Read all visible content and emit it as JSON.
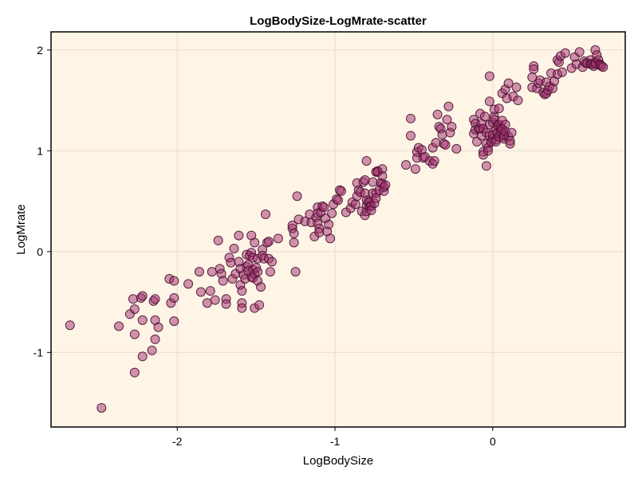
{
  "chart_data": {
    "type": "scatter",
    "title": "LogBodySize-LogMrate-scatter",
    "xlabel": "LogBodySize",
    "ylabel": "LogMrate",
    "xlim": [
      -2.8,
      0.84
    ],
    "ylim": [
      -1.74,
      2.18
    ],
    "x_ticks": [
      -2,
      -1,
      0
    ],
    "y_ticks": [
      -1,
      0,
      1,
      2
    ],
    "x_tick_labels": [
      "-2",
      "-1",
      "0"
    ],
    "y_tick_labels": [
      "-1",
      "0",
      "1",
      "2"
    ],
    "grid": true,
    "legend": "none",
    "colors": {
      "background": "#fff5e6",
      "point_fill": "#a0306e",
      "point_stroke": "#4a0f30",
      "grid": "#e6dcd0",
      "frame": "#000000"
    },
    "points": [
      [
        -2.68,
        -0.73
      ],
      [
        -2.48,
        -1.55
      ],
      [
        -2.37,
        -0.74
      ],
      [
        -2.3,
        -0.62
      ],
      [
        -2.28,
        -0.47
      ],
      [
        -2.27,
        -0.57
      ],
      [
        -2.27,
        -0.82
      ],
      [
        -2.27,
        -1.2
      ],
      [
        -2.23,
        -0.46
      ],
      [
        -2.22,
        -0.44
      ],
      [
        -2.22,
        -0.68
      ],
      [
        -2.22,
        -1.04
      ],
      [
        -2.16,
        -0.98
      ],
      [
        -2.15,
        -0.49
      ],
      [
        -2.14,
        -0.47
      ],
      [
        -2.14,
        -0.68
      ],
      [
        -2.14,
        -0.87
      ],
      [
        -2.12,
        -0.75
      ],
      [
        -2.05,
        -0.27
      ],
      [
        -2.04,
        -0.51
      ],
      [
        -2.02,
        -0.29
      ],
      [
        -2.02,
        -0.46
      ],
      [
        -2.02,
        -0.69
      ],
      [
        -1.93,
        -0.32
      ],
      [
        -1.86,
        -0.2
      ],
      [
        -1.85,
        -0.4
      ],
      [
        -1.81,
        -0.51
      ],
      [
        -1.79,
        -0.39
      ],
      [
        -1.78,
        -0.2
      ],
      [
        -1.76,
        -0.48
      ],
      [
        -1.74,
        0.11
      ],
      [
        -1.73,
        -0.17
      ],
      [
        -1.72,
        -0.22
      ],
      [
        -1.71,
        -0.29
      ],
      [
        -1.69,
        -0.47
      ],
      [
        -1.69,
        -0.52
      ],
      [
        -1.67,
        -0.06
      ],
      [
        -1.66,
        -0.11
      ],
      [
        -1.65,
        -0.27
      ],
      [
        -1.64,
        0.03
      ],
      [
        -1.63,
        -0.22
      ],
      [
        -1.61,
        0.16
      ],
      [
        -1.61,
        -0.1
      ],
      [
        -1.6,
        -0.17
      ],
      [
        -1.6,
        -0.33
      ],
      [
        -1.59,
        -0.39
      ],
      [
        -1.59,
        -0.51
      ],
      [
        -1.59,
        -0.56
      ],
      [
        -1.58,
        -0.23
      ],
      [
        -1.57,
        -0.27
      ],
      [
        -1.56,
        -0.03
      ],
      [
        -1.56,
        -0.15
      ],
      [
        -1.55,
        -0.13
      ],
      [
        -1.55,
        -0.19
      ],
      [
        -1.54,
        -0.04
      ],
      [
        -1.53,
        0.16
      ],
      [
        -1.53,
        -0.01
      ],
      [
        -1.53,
        -0.25
      ],
      [
        -1.52,
        -0.06
      ],
      [
        -1.52,
        -0.18
      ],
      [
        -1.52,
        -0.26
      ],
      [
        -1.51,
        0.09
      ],
      [
        -1.51,
        -0.22
      ],
      [
        -1.51,
        -0.56
      ],
      [
        -1.5,
        -0.16
      ],
      [
        -1.49,
        -0.07
      ],
      [
        -1.49,
        -0.2
      ],
      [
        -1.49,
        -0.29
      ],
      [
        -1.48,
        -0.53
      ],
      [
        -1.47,
        -0.35
      ],
      [
        -1.46,
        0.02
      ],
      [
        -1.46,
        -0.04
      ],
      [
        -1.45,
        -0.07
      ],
      [
        -1.44,
        0.37
      ],
      [
        -1.43,
        0.09
      ],
      [
        -1.42,
        0.1
      ],
      [
        -1.42,
        -0.07
      ],
      [
        -1.41,
        -0.2
      ],
      [
        -1.4,
        -0.1
      ],
      [
        -1.36,
        0.13
      ],
      [
        -1.27,
        0.23
      ],
      [
        -1.27,
        0.26
      ],
      [
        -1.26,
        0.18
      ],
      [
        -1.26,
        0.09
      ],
      [
        -1.25,
        -0.2
      ],
      [
        -1.24,
        0.55
      ],
      [
        -1.23,
        0.32
      ],
      [
        -1.19,
        0.3
      ],
      [
        -1.16,
        0.37
      ],
      [
        -1.15,
        0.29
      ],
      [
        -1.13,
        0.15
      ],
      [
        -1.12,
        0.34
      ],
      [
        -1.11,
        0.44
      ],
      [
        -1.11,
        0.38
      ],
      [
        -1.11,
        0.28
      ],
      [
        -1.1,
        0.23
      ],
      [
        -1.1,
        0.19
      ],
      [
        -1.09,
        0.39
      ],
      [
        -1.08,
        0.45
      ],
      [
        -1.07,
        0.44
      ],
      [
        -1.06,
        0.33
      ],
      [
        -1.05,
        0.2
      ],
      [
        -1.04,
        0.27
      ],
      [
        -1.03,
        0.13
      ],
      [
        -1.02,
        0.38
      ],
      [
        -1.01,
        0.47
      ],
      [
        -0.99,
        0.52
      ],
      [
        -0.98,
        0.51
      ],
      [
        -0.97,
        0.61
      ],
      [
        -0.96,
        0.6
      ],
      [
        -0.93,
        0.39
      ],
      [
        -0.9,
        0.43
      ],
      [
        -0.89,
        0.49
      ],
      [
        -0.87,
        0.47
      ],
      [
        -0.86,
        0.68
      ],
      [
        -0.86,
        0.55
      ],
      [
        -0.85,
        0.61
      ],
      [
        -0.84,
        0.59
      ],
      [
        -0.83,
        0.4
      ],
      [
        -0.82,
        0.69
      ],
      [
        -0.81,
        0.58
      ],
      [
        -0.81,
        0.71
      ],
      [
        -0.81,
        0.36
      ],
      [
        -0.8,
        0.4
      ],
      [
        -0.8,
        0.9
      ],
      [
        -0.8,
        0.46
      ],
      [
        -0.8,
        0.51
      ],
      [
        -0.79,
        0.49
      ],
      [
        -0.78,
        0.49
      ],
      [
        -0.78,
        0.45
      ],
      [
        -0.77,
        0.45
      ],
      [
        -0.77,
        0.41
      ],
      [
        -0.76,
        0.69
      ],
      [
        -0.76,
        0.58
      ],
      [
        -0.75,
        0.48
      ],
      [
        -0.74,
        0.79
      ],
      [
        -0.74,
        0.58
      ],
      [
        -0.74,
        0.53
      ],
      [
        -0.73,
        0.8
      ],
      [
        -0.73,
        0.79
      ],
      [
        -0.72,
        0.61
      ],
      [
        -0.71,
        0.68
      ],
      [
        -0.7,
        0.82
      ],
      [
        -0.7,
        0.75
      ],
      [
        -0.7,
        0.67
      ],
      [
        -0.69,
        0.6
      ],
      [
        -0.69,
        0.64
      ],
      [
        -0.68,
        0.66
      ],
      [
        -0.55,
        0.86
      ],
      [
        -0.52,
        1.32
      ],
      [
        -0.52,
        1.15
      ],
      [
        -0.49,
        0.82
      ],
      [
        -0.48,
        0.93
      ],
      [
        -0.48,
        0.99
      ],
      [
        -0.47,
        1.03
      ],
      [
        -0.45,
        1.01
      ],
      [
        -0.44,
        0.93
      ],
      [
        -0.43,
        0.94
      ],
      [
        -0.4,
        0.9
      ],
      [
        -0.38,
        0.87
      ],
      [
        -0.38,
        1.03
      ],
      [
        -0.37,
        0.9
      ],
      [
        -0.36,
        1.08
      ],
      [
        -0.35,
        1.36
      ],
      [
        -0.34,
        1.24
      ],
      [
        -0.33,
        1.22
      ],
      [
        -0.32,
        1.16
      ],
      [
        -0.31,
        1.07
      ],
      [
        -0.3,
        1.06
      ],
      [
        -0.29,
        1.31
      ],
      [
        -0.28,
        1.44
      ],
      [
        -0.27,
        1.18
      ],
      [
        -0.26,
        1.24
      ],
      [
        -0.23,
        1.02
      ],
      [
        -0.12,
        1.17
      ],
      [
        -0.12,
        1.31
      ],
      [
        -0.11,
        1.27
      ],
      [
        -0.11,
        1.21
      ],
      [
        -0.1,
        1.09
      ],
      [
        -0.09,
        1.22
      ],
      [
        -0.08,
        1.37
      ],
      [
        -0.08,
        1.22
      ],
      [
        -0.07,
        1.27
      ],
      [
        -0.07,
        1.15
      ],
      [
        -0.06,
        1.22
      ],
      [
        -0.06,
        0.99
      ],
      [
        -0.06,
        0.96
      ],
      [
        -0.05,
        1.34
      ],
      [
        -0.04,
        0.85
      ],
      [
        -0.04,
        1.18
      ],
      [
        -0.04,
        1.07
      ],
      [
        -0.03,
        1.03
      ],
      [
        -0.03,
        1.0
      ],
      [
        -0.02,
        1.15
      ],
      [
        -0.02,
        1.49
      ],
      [
        -0.02,
        1.74
      ],
      [
        -0.02,
        1.26
      ],
      [
        -0.01,
        1.09
      ],
      [
        -0.01,
        1.09
      ],
      [
        0.0,
        1.12
      ],
      [
        0.0,
        1.16
      ],
      [
        0.0,
        1.28
      ],
      [
        0.01,
        1.34
      ],
      [
        0.01,
        1.41
      ],
      [
        0.01,
        1.31
      ],
      [
        0.02,
        1.21
      ],
      [
        0.02,
        1.11
      ],
      [
        0.02,
        1.09
      ],
      [
        0.03,
        1.18
      ],
      [
        0.03,
        1.25
      ],
      [
        0.04,
        1.42
      ],
      [
        0.04,
        1.26
      ],
      [
        0.04,
        1.14
      ],
      [
        0.05,
        1.19
      ],
      [
        0.05,
        1.23
      ],
      [
        0.06,
        1.57
      ],
      [
        0.06,
        1.3
      ],
      [
        0.06,
        1.22
      ],
      [
        0.06,
        1.21
      ],
      [
        0.07,
        1.14
      ],
      [
        0.07,
        1.12
      ],
      [
        0.07,
        1.16
      ],
      [
        0.08,
        1.61
      ],
      [
        0.08,
        1.26
      ],
      [
        0.08,
        1.19
      ],
      [
        0.09,
        1.52
      ],
      [
        0.1,
        1.67
      ],
      [
        0.1,
        1.14
      ],
      [
        0.11,
        1.07
      ],
      [
        0.11,
        1.1
      ],
      [
        0.12,
        1.18
      ],
      [
        0.13,
        1.54
      ],
      [
        0.15,
        1.63
      ],
      [
        0.16,
        1.5
      ],
      [
        0.25,
        1.63
      ],
      [
        0.25,
        1.73
      ],
      [
        0.26,
        1.84
      ],
      [
        0.26,
        1.81
      ],
      [
        0.28,
        1.62
      ],
      [
        0.29,
        1.67
      ],
      [
        0.3,
        1.7
      ],
      [
        0.32,
        1.58
      ],
      [
        0.33,
        1.56
      ],
      [
        0.34,
        1.57
      ],
      [
        0.34,
        1.68
      ],
      [
        0.35,
        1.6
      ],
      [
        0.36,
        1.64
      ],
      [
        0.37,
        1.77
      ],
      [
        0.38,
        1.62
      ],
      [
        0.39,
        1.69
      ],
      [
        0.41,
        1.76
      ],
      [
        0.41,
        1.9
      ],
      [
        0.42,
        1.88
      ],
      [
        0.43,
        1.94
      ],
      [
        0.44,
        1.78
      ],
      [
        0.46,
        1.97
      ],
      [
        0.5,
        1.82
      ],
      [
        0.52,
        1.93
      ],
      [
        0.53,
        1.86
      ],
      [
        0.55,
        1.98
      ],
      [
        0.57,
        1.83
      ],
      [
        0.58,
        1.89
      ],
      [
        0.59,
        1.87
      ],
      [
        0.6,
        1.87
      ],
      [
        0.62,
        1.9
      ],
      [
        0.62,
        1.86
      ],
      [
        0.63,
        1.86
      ],
      [
        0.64,
        1.84
      ],
      [
        0.65,
        1.88
      ],
      [
        0.65,
        1.86
      ],
      [
        0.65,
        2.0
      ],
      [
        0.66,
        1.95
      ],
      [
        0.67,
        1.9
      ],
      [
        0.68,
        1.86
      ],
      [
        0.68,
        1.85
      ],
      [
        0.69,
        1.84
      ],
      [
        0.7,
        1.83
      ]
    ]
  }
}
